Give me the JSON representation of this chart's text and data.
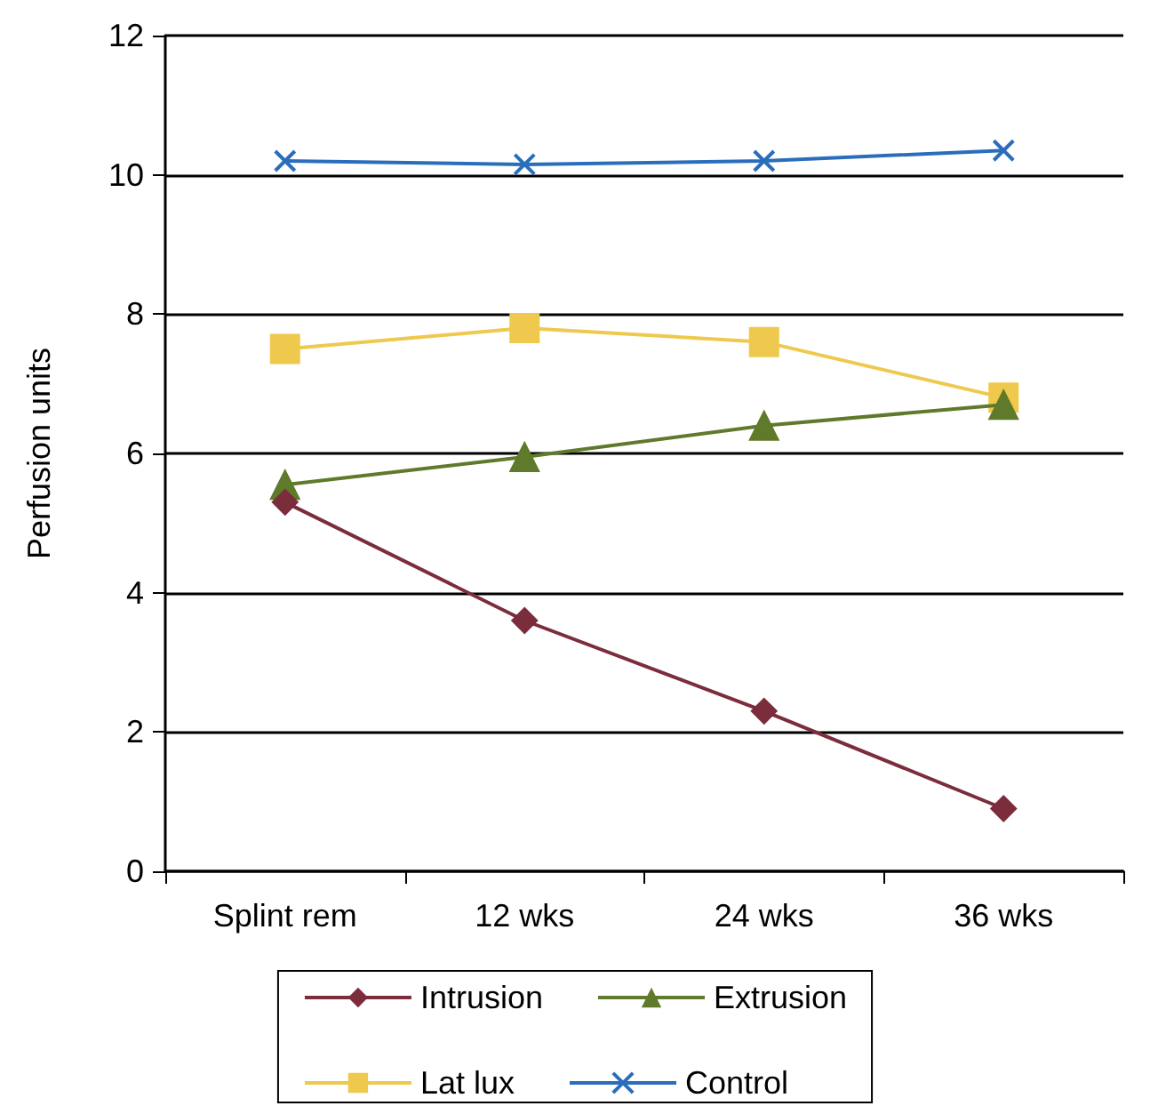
{
  "chart_data": {
    "type": "line",
    "ylabel": "Perfusion units",
    "categories": [
      "Splint rem",
      "12 wks",
      "24 wks",
      "36 wks"
    ],
    "series": [
      {
        "name": "Intrusion",
        "color": "#7b2d3c",
        "marker": "diamond",
        "values": [
          5.3,
          3.6,
          2.3,
          0.9
        ]
      },
      {
        "name": "Extrusion",
        "color": "#5f7a2a",
        "marker": "triangle",
        "values": [
          5.55,
          5.95,
          6.4,
          6.7
        ]
      },
      {
        "name": "Lat lux",
        "color": "#eec94e",
        "marker": "square",
        "values": [
          7.5,
          7.8,
          7.6,
          6.8
        ]
      },
      {
        "name": "Control",
        "color": "#2a6ebb",
        "marker": "cross",
        "values": [
          10.2,
          10.15,
          10.2,
          10.35
        ]
      }
    ],
    "ylim": [
      0,
      12
    ],
    "yticks": [
      0,
      2,
      4,
      6,
      8,
      10,
      12
    ],
    "grid": "y",
    "legend": "bottom"
  }
}
